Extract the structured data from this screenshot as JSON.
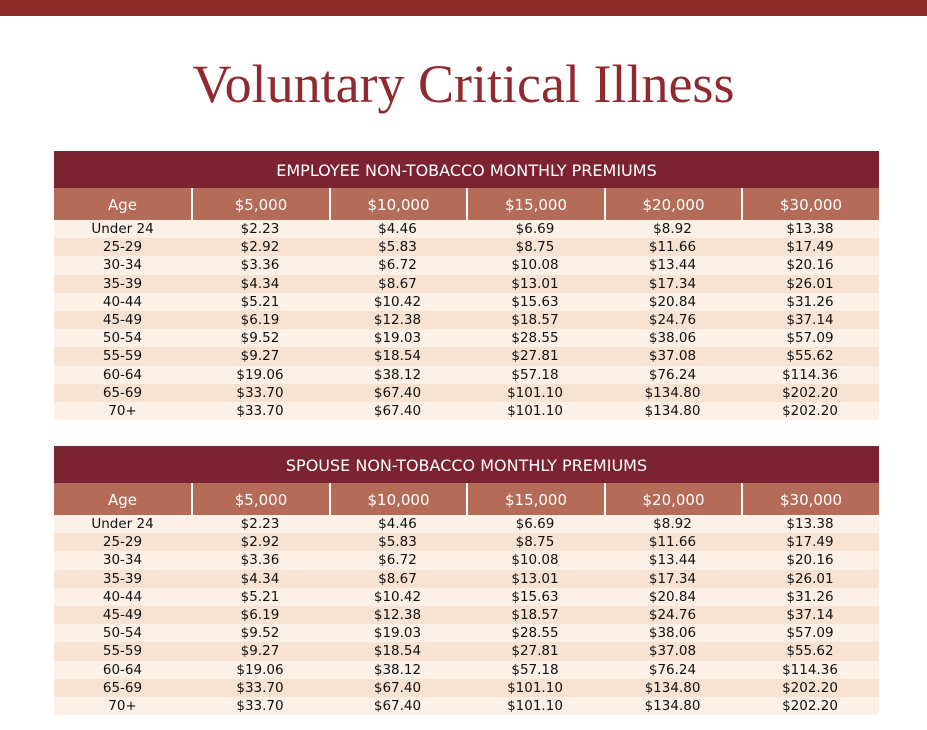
{
  "title": "Voluntary Critical Illness",
  "tables": [
    {
      "title": "EMPLOYEE NON-TOBACCO MONTHLY PREMIUMS",
      "header": [
        "Age",
        "$5,000",
        "$10,000",
        "$15,000",
        "$20,000",
        "$30,000"
      ],
      "rows": [
        [
          "Under 24",
          "$2.23",
          "$4.46",
          "$6.69",
          "$8.92",
          "$13.38"
        ],
        [
          "25-29",
          "$2.92",
          "$5.83",
          "$8.75",
          "$11.66",
          "$17.49"
        ],
        [
          "30-34",
          "$3.36",
          "$6.72",
          "$10.08",
          "$13.44",
          "$20.16"
        ],
        [
          "35-39",
          "$4.34",
          "$8.67",
          "$13.01",
          "$17.34",
          "$26.01"
        ],
        [
          "40-44",
          "$5.21",
          "$10.42",
          "$15.63",
          "$20.84",
          "$31.26"
        ],
        [
          "45-49",
          "$6.19",
          "$12.38",
          "$18.57",
          "$24.76",
          "$37.14"
        ],
        [
          "50-54",
          "$9.52",
          "$19.03",
          "$28.55",
          "$38.06",
          "$57.09"
        ],
        [
          "55-59",
          "$9.27",
          "$18.54",
          "$27.81",
          "$37.08",
          "$55.62"
        ],
        [
          "60-64",
          "$19.06",
          "$38.12",
          "$57.18",
          "$76.24",
          "$114.36"
        ],
        [
          "65-69",
          "$33.70",
          "$67.40",
          "$101.10",
          "$134.80",
          "$202.20"
        ],
        [
          "70+",
          "$33.70",
          "$67.40",
          "$101.10",
          "$134.80",
          "$202.20"
        ]
      ]
    },
    {
      "title": "SPOUSE NON-TOBACCO MONTHLY PREMIUMS",
      "header": [
        "Age",
        "$5,000",
        "$10,000",
        "$15,000",
        "$20,000",
        "$30,000"
      ],
      "rows": [
        [
          "Under 24",
          "$2.23",
          "$4.46",
          "$6.69",
          "$8.92",
          "$13.38"
        ],
        [
          "25-29",
          "$2.92",
          "$5.83",
          "$8.75",
          "$11.66",
          "$17.49"
        ],
        [
          "30-34",
          "$3.36",
          "$6.72",
          "$10.08",
          "$13.44",
          "$20.16"
        ],
        [
          "35-39",
          "$4.34",
          "$8.67",
          "$13.01",
          "$17.34",
          "$26.01"
        ],
        [
          "40-44",
          "$5.21",
          "$10.42",
          "$15.63",
          "$20.84",
          "$31.26"
        ],
        [
          "45-49",
          "$6.19",
          "$12.38",
          "$18.57",
          "$24.76",
          "$37.14"
        ],
        [
          "50-54",
          "$9.52",
          "$19.03",
          "$28.55",
          "$38.06",
          "$57.09"
        ],
        [
          "55-59",
          "$9.27",
          "$18.54",
          "$27.81",
          "$37.08",
          "$55.62"
        ],
        [
          "60-64",
          "$19.06",
          "$38.12",
          "$57.18",
          "$76.24",
          "$114.36"
        ],
        [
          "65-69",
          "$33.70",
          "$67.40",
          "$101.10",
          "$134.80",
          "$202.20"
        ],
        [
          "70+",
          "$33.70",
          "$67.40",
          "$101.10",
          "$134.80",
          "$202.20"
        ]
      ]
    }
  ]
}
